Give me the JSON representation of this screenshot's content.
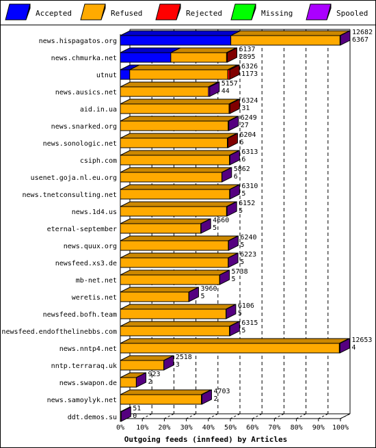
{
  "chart_data": {
    "type": "bar",
    "orientation": "horizontal",
    "stacked": true,
    "xlabel": "Outgoing feeds (innfeed) by Articles",
    "x_ticks": [
      "0%",
      "10%",
      "20%",
      "30%",
      "40%",
      "50%",
      "60%",
      "70%",
      "80%",
      "90%",
      "100%"
    ],
    "xlim": [
      0,
      100
    ],
    "grid": true,
    "legend_position": "top",
    "legend": [
      {
        "name": "Accepted",
        "color": "#0000ff"
      },
      {
        "name": "Refused",
        "color": "#ffaa00"
      },
      {
        "name": "Rejected",
        "color": "#ff0000"
      },
      {
        "name": "Missing",
        "color": "#00ff00"
      },
      {
        "name": "Spooled",
        "color": "#aa00ff"
      }
    ],
    "categories": [
      {
        "name": "news.hispagatos.org",
        "offered": 12682,
        "second": 6367
      },
      {
        "name": "news.chmurka.net",
        "offered": 6137,
        "second": 2895
      },
      {
        "name": "utnut",
        "offered": 6326,
        "second": 1173
      },
      {
        "name": "news.ausics.net",
        "offered": 5157,
        "second": 44
      },
      {
        "name": "aid.in.ua",
        "offered": 6324,
        "second": 31
      },
      {
        "name": "news.snarked.org",
        "offered": 6249,
        "second": 27
      },
      {
        "name": "news.sonologic.net",
        "offered": 6204,
        "second": 6
      },
      {
        "name": "csiph.com",
        "offered": 6313,
        "second": 6
      },
      {
        "name": "usenet.goja.nl.eu.org",
        "offered": 5862,
        "second": 6
      },
      {
        "name": "news.tnetconsulting.net",
        "offered": 6310,
        "second": 5
      },
      {
        "name": "news.1d4.us",
        "offered": 6152,
        "second": 5
      },
      {
        "name": "eternal-september",
        "offered": 4660,
        "second": 5
      },
      {
        "name": "news.quux.org",
        "offered": 6240,
        "second": 5
      },
      {
        "name": "newsfeed.xs3.de",
        "offered": 6223,
        "second": 5
      },
      {
        "name": "mb-net.net",
        "offered": 5738,
        "second": 5
      },
      {
        "name": "weretis.net",
        "offered": 3960,
        "second": 5
      },
      {
        "name": "newsfeed.bofh.team",
        "offered": 6106,
        "second": 5
      },
      {
        "name": "newsfeed.endofthelinebbs.com",
        "offered": 6315,
        "second": 5
      },
      {
        "name": "news.nntp4.net",
        "offered": 12653,
        "second": 4
      },
      {
        "name": "nntp.terraraq.uk",
        "offered": 2518,
        "second": 3
      },
      {
        "name": "news.swapon.de",
        "offered": 923,
        "second": 2
      },
      {
        "name": "news.samoylyk.net",
        "offered": 4703,
        "second": 2
      },
      {
        "name": "ddt.demos.su",
        "offered": 51,
        "second": 0
      }
    ],
    "series": [
      {
        "name": "Accepted",
        "color": "#0000ff",
        "values": [
          50.2,
          47.2,
          8.6,
          0,
          0,
          0,
          0,
          0,
          0,
          0,
          0,
          0,
          0,
          0,
          0,
          0,
          0,
          0,
          0,
          0,
          0,
          0,
          0
        ]
      },
      {
        "name": "Refused",
        "color": "#ffaa00",
        "values": [
          49.6,
          52.1,
          89.6,
          98.6,
          99.2,
          99.4,
          99.4,
          99.6,
          99.8,
          99.7,
          99.5,
          99.6,
          99.7,
          99.8,
          99.8,
          99.7,
          99.8,
          99.6,
          99.7,
          99.6,
          99.5,
          99.2,
          99.4
        ]
      },
      {
        "name": "Rejected",
        "color": "#ff0000",
        "values": [
          0,
          0.7,
          1.8,
          0,
          0.8,
          0,
          0.6,
          0,
          0,
          0,
          0,
          0,
          0,
          0,
          0,
          0,
          0,
          0,
          0,
          0,
          0,
          0,
          0
        ]
      },
      {
        "name": "Missing",
        "color": "#00ff00",
        "values": [
          0,
          0,
          0,
          0,
          0,
          0,
          0,
          0,
          0,
          0,
          0,
          0,
          0,
          0,
          0,
          0,
          0,
          0,
          0,
          0,
          0,
          0,
          0
        ]
      },
      {
        "name": "Spooled",
        "color": "#aa00ff",
        "values": [
          0.2,
          0,
          0,
          1.4,
          0,
          0.6,
          0,
          0.4,
          0.2,
          0.3,
          0.5,
          0.4,
          0.3,
          0.2,
          0.2,
          0.3,
          0.2,
          0.4,
          0.3,
          0.4,
          0.5,
          0.8,
          0.6
        ]
      }
    ],
    "bar_scale": [
      100,
      48.6,
      49.7,
      40.6,
      49.8,
      49.3,
      48.9,
      49.8,
      46.2,
      49.8,
      48.5,
      36.7,
      49.2,
      49.1,
      45.2,
      31.2,
      48.1,
      49.8,
      99.8,
      19.8,
      7.3,
      37.1,
      0.4
    ]
  }
}
